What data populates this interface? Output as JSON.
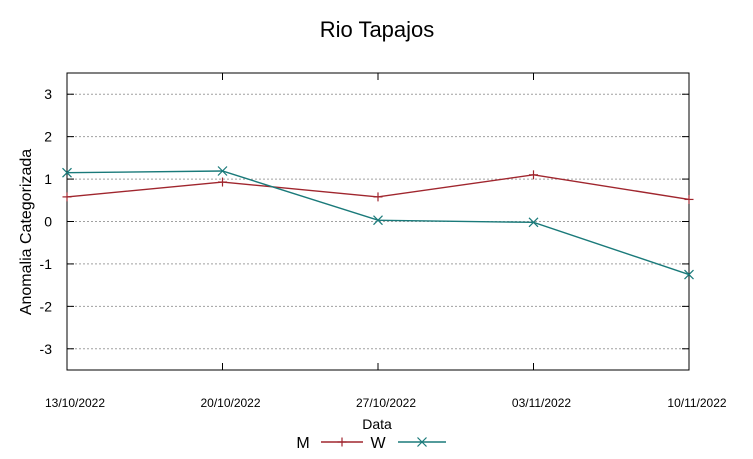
{
  "chart_data": {
    "type": "line",
    "title": "Rio Tapajos",
    "xlabel": "Data",
    "ylabel": "Anomalia Categorizada",
    "categories": [
      "13/10/2022",
      "20/10/2022",
      "27/10/2022",
      "03/11/2022",
      "10/11/2022"
    ],
    "ylim": [
      -3.5,
      3.5
    ],
    "yticks": [
      "-3",
      "-2",
      "-1",
      "0",
      "1",
      "2",
      "3"
    ],
    "grid": true,
    "legend_position": "bottom-center",
    "series": [
      {
        "name": "M",
        "color": "#a0262e",
        "marker": "plus",
        "values": [
          0.58,
          0.93,
          0.58,
          1.1,
          0.52
        ]
      },
      {
        "name": "W",
        "color": "#1a7a7a",
        "marker": "cross",
        "values": [
          1.15,
          1.19,
          0.03,
          -0.02,
          -1.25
        ]
      }
    ]
  }
}
